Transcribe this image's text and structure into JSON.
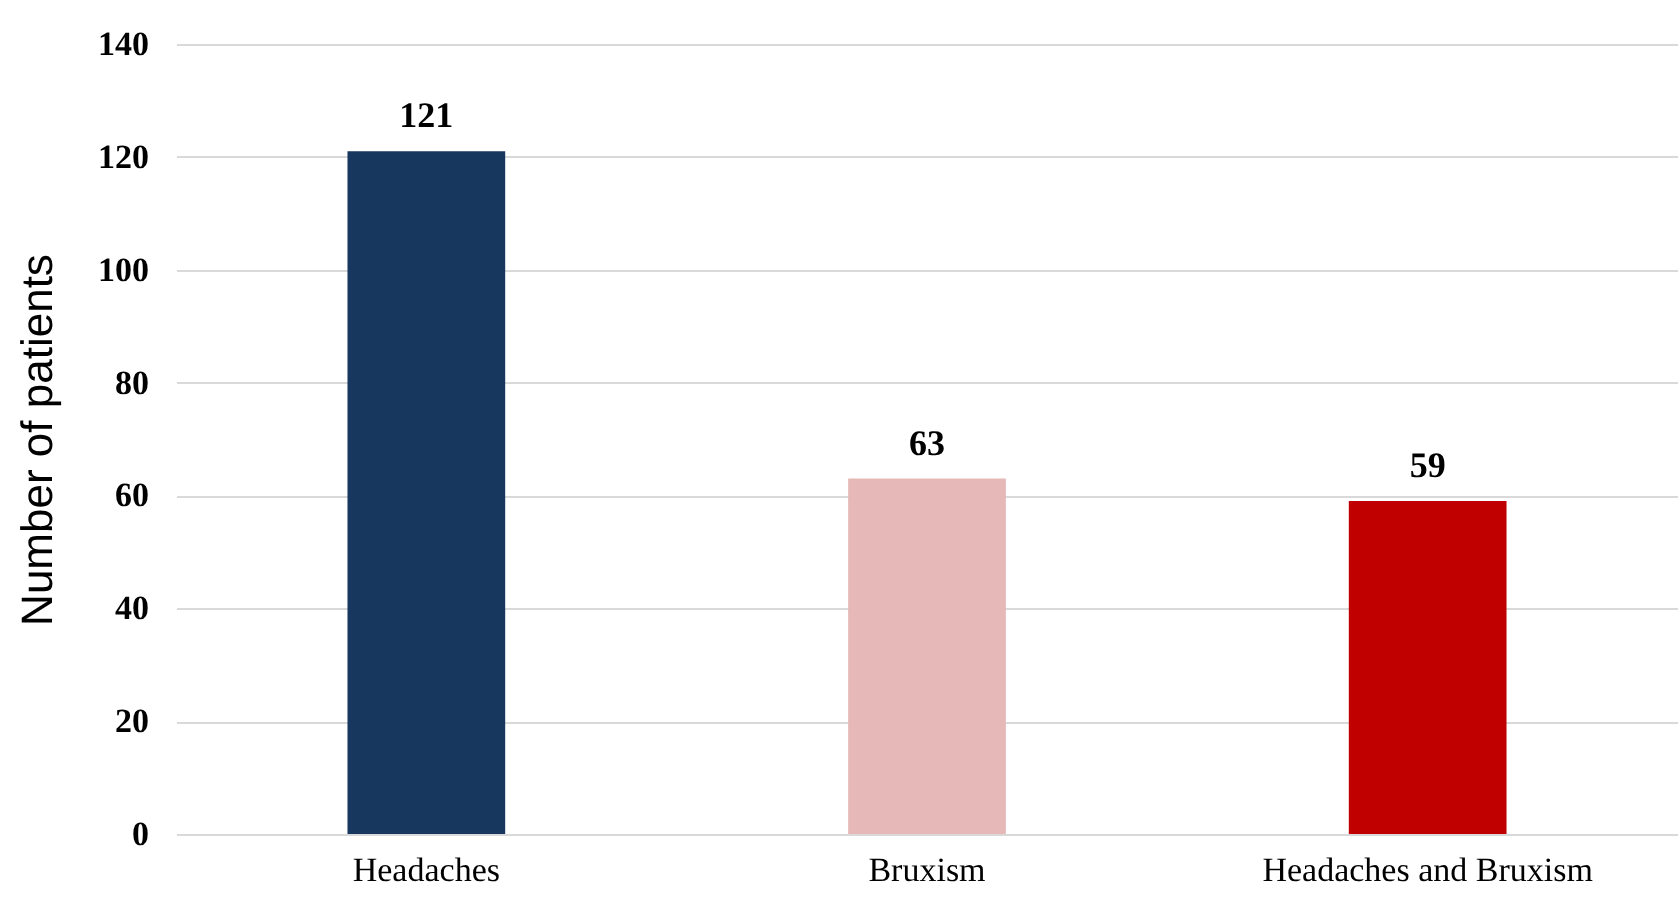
{
  "chart_data": {
    "type": "bar",
    "ylabel": "Number of patients",
    "categories": [
      "Headaches",
      "Bruxism",
      "Headaches and Bruxism"
    ],
    "values": [
      121,
      63,
      59
    ],
    "colors": [
      "#17375e",
      "#e6b9b8",
      "#c00000"
    ],
    "ylim": [
      0,
      140
    ],
    "yticks": [
      0,
      20,
      40,
      60,
      80,
      100,
      120,
      140
    ],
    "grid": "y",
    "data_labels": true
  }
}
